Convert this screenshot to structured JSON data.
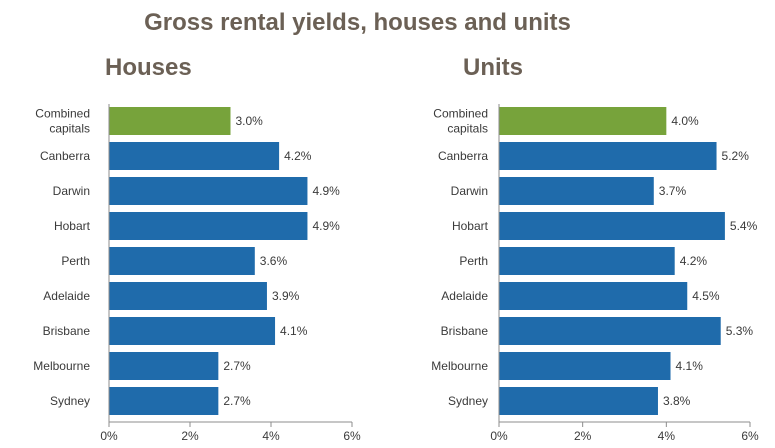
{
  "title": "Gross rental yields, houses and units",
  "colors": {
    "bar": "#1f6bab",
    "highlight": "#77a33b",
    "axis": "#8c8c8c"
  },
  "chart_data": [
    {
      "type": "bar",
      "orientation": "horizontal",
      "title": "Houses",
      "categories": [
        [
          "Combined",
          "capitals"
        ],
        "Canberra",
        "Darwin",
        "Hobart",
        "Perth",
        "Adelaide",
        "Brisbane",
        "Melbourne",
        "Sydney"
      ],
      "values": [
        3.0,
        4.2,
        4.9,
        4.9,
        3.6,
        3.9,
        4.1,
        2.7,
        2.7
      ],
      "value_labels": [
        "3.0%",
        "4.2%",
        "4.9%",
        "4.9%",
        "3.6%",
        "3.9%",
        "4.1%",
        "2.7%",
        "2.7%"
      ],
      "highlight_index": 0,
      "xlim": [
        0,
        6
      ],
      "xticks": [
        0,
        2,
        4,
        6
      ],
      "xtick_labels": [
        "0%",
        "2%",
        "4%",
        "6%"
      ],
      "grid": false
    },
    {
      "type": "bar",
      "orientation": "horizontal",
      "title": "Units",
      "categories": [
        [
          "Combined",
          "capitals"
        ],
        "Canberra",
        "Darwin",
        "Hobart",
        "Perth",
        "Adelaide",
        "Brisbane",
        "Melbourne",
        "Sydney"
      ],
      "values": [
        4.0,
        5.2,
        3.7,
        5.4,
        4.2,
        4.5,
        5.3,
        4.1,
        3.8
      ],
      "value_labels": [
        "4.0%",
        "5.2%",
        "3.7%",
        "5.4%",
        "4.2%",
        "4.5%",
        "5.3%",
        "4.1%",
        "3.8%"
      ],
      "highlight_index": 0,
      "xlim": [
        0,
        6
      ],
      "xticks": [
        0,
        2,
        4,
        6
      ],
      "xtick_labels": [
        "0%",
        "2%",
        "4%",
        "6%"
      ],
      "grid": false
    }
  ]
}
